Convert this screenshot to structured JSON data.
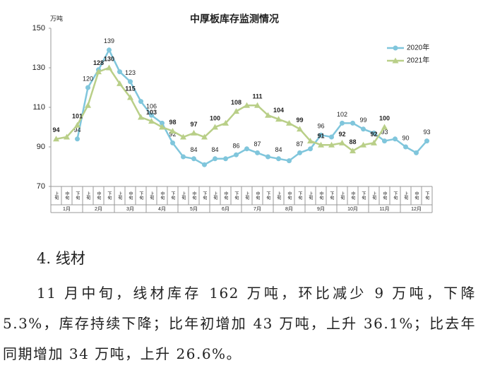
{
  "chart_data": {
    "type": "line",
    "title": "中厚板库存监测情况",
    "y_unit": "万吨",
    "categories": [
      "上旬",
      "中旬",
      "下旬",
      "上旬",
      "中旬",
      "下旬",
      "上旬",
      "中旬",
      "下旬",
      "上旬",
      "中旬",
      "下旬",
      "上旬",
      "中旬",
      "下旬",
      "上旬",
      "中旬",
      "下旬",
      "上旬",
      "中旬",
      "下旬",
      "上旬",
      "中旬",
      "下旬",
      "上旬",
      "中旬",
      "下旬",
      "上旬",
      "中旬",
      "下旬",
      "上旬",
      "中旬",
      "下旬",
      "上旬",
      "中旬",
      "下旬"
    ],
    "groups": [
      "1月",
      "2月",
      "3月",
      "4月",
      "5月",
      "6月",
      "7月",
      "8月",
      "9月",
      "10月",
      "11月",
      "12月"
    ],
    "ylim": [
      70,
      150
    ],
    "yticks": [
      70,
      90,
      110,
      130,
      150
    ],
    "grid": false,
    "legend": "upper right",
    "series": [
      {
        "name": "2020年",
        "color": "#80c6dc",
        "marker": "circle",
        "values": [
          null,
          null,
          94,
          120,
          129,
          139,
          128,
          123,
          113,
          106,
          102,
          92,
          85,
          84,
          81,
          84,
          84,
          86,
          89,
          87,
          85,
          84,
          83,
          87,
          89,
          96,
          95,
          102,
          102,
          99,
          97,
          93,
          94,
          90,
          87,
          93
        ],
        "value_labels": [
          null,
          null,
          "94",
          "120",
          null,
          "139",
          null,
          "123",
          null,
          "106",
          null,
          "92",
          null,
          "84",
          null,
          "84",
          null,
          "86",
          null,
          "87",
          null,
          "84",
          null,
          "87",
          null,
          "96",
          null,
          "102",
          null,
          "99",
          null,
          "93",
          null,
          "90",
          null,
          "93"
        ]
      },
      {
        "name": "2021年",
        "color": "#b9cf88",
        "marker": "triangle",
        "values": [
          94,
          95,
          101,
          111,
          128,
          130,
          122,
          115,
          105,
          103,
          100,
          98,
          95,
          97,
          95,
          100,
          102,
          108,
          111,
          111,
          106,
          104,
          102,
          99,
          93,
          91,
          91,
          92,
          88,
          91,
          92,
          100,
          null,
          null,
          null,
          null
        ],
        "value_labels": [
          "94",
          null,
          "101",
          null,
          "128",
          "130",
          null,
          "115",
          null,
          "103",
          null,
          "98",
          null,
          "97",
          null,
          "100",
          null,
          "108",
          null,
          "111",
          null,
          "104",
          null,
          "99",
          null,
          "91",
          null,
          "92",
          "88",
          null,
          "92",
          "100",
          null,
          null,
          null,
          null
        ]
      }
    ]
  },
  "document": {
    "heading": "4. 线材",
    "paragraph": "11 月中旬，线材库存 162 万吨，环比减少 9 万吨，下降 5.3%，库存持续下降；比年初增加 43 万吨，上升 36.1%；比去年同期增加 34 万吨，上升 26.6%。"
  }
}
